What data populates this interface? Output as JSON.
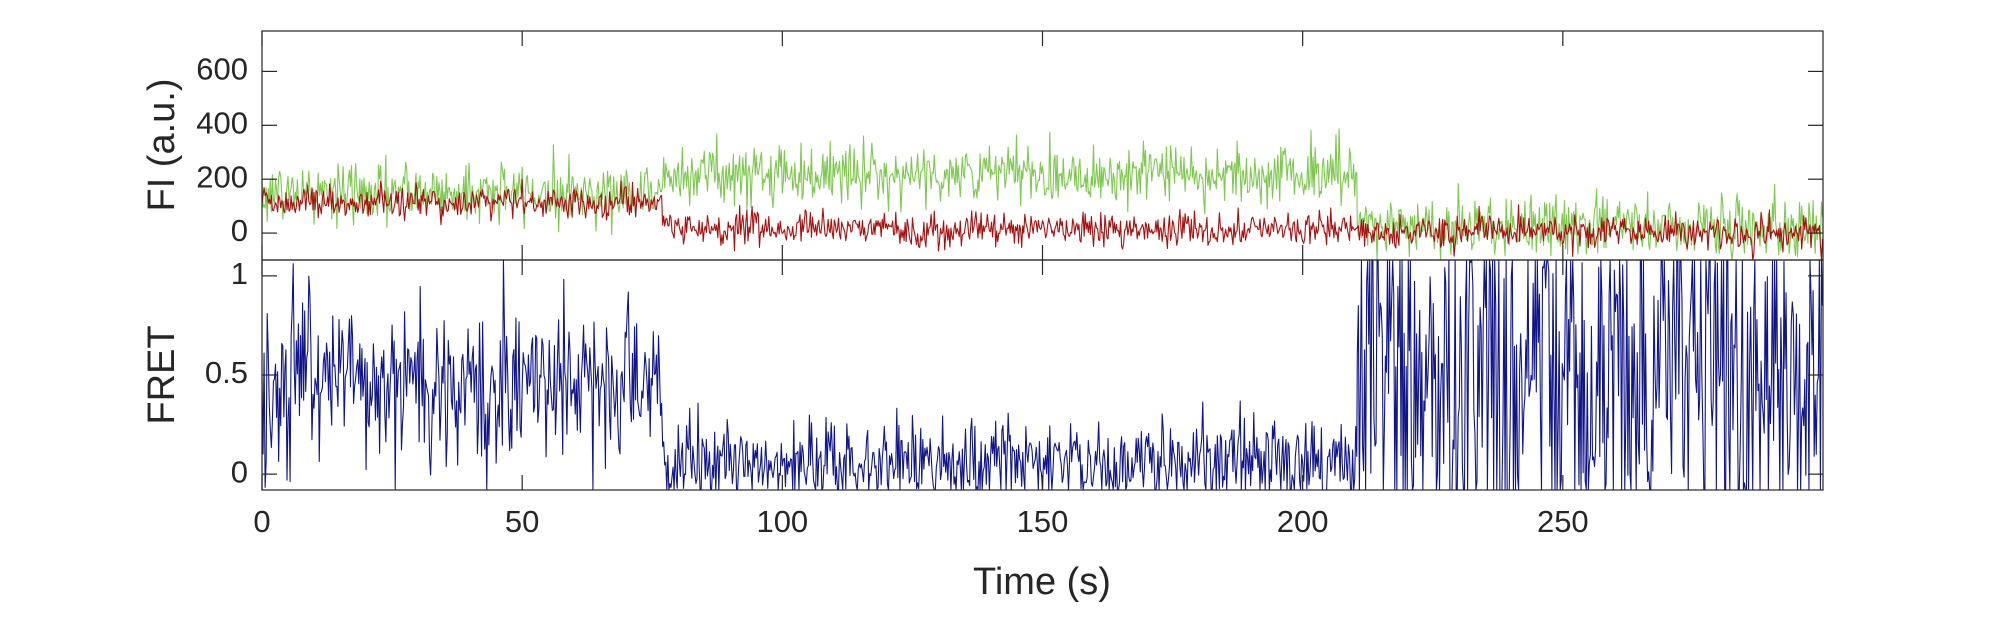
{
  "chart_data": [
    {
      "type": "line",
      "panel": "fluorescence",
      "xlabel": "",
      "ylabel": "FI (a.u.)",
      "xlim": [
        0,
        300
      ],
      "ylim": [
        -100,
        750
      ],
      "yticks": [
        0,
        200,
        400,
        600
      ],
      "ytick_labels": [
        "0",
        "200",
        "400",
        "600"
      ],
      "grid": false,
      "x_step": 0.2,
      "series": [
        {
          "color": "#7ec850",
          "noise_sd": 55,
          "segments": [
            {
              "x_start": 0,
              "x_end": 77,
              "mean": 150
            },
            {
              "x_start": 77,
              "x_end": 210.5,
              "mean": 220
            },
            {
              "x_start": 210.5,
              "x_end": 300,
              "mean": 25
            }
          ]
        },
        {
          "color": "#a81010",
          "noise_sd": 30,
          "segments": [
            {
              "x_start": 0,
              "x_end": 77,
              "mean": 115
            },
            {
              "x_start": 77,
              "x_end": 210.5,
              "mean": 15
            },
            {
              "x_start": 210.5,
              "x_end": 300,
              "mean": 5
            }
          ]
        }
      ]
    },
    {
      "type": "line",
      "panel": "fret",
      "xlabel": "Time (s)",
      "ylabel": "FRET",
      "xlim": [
        0,
        300
      ],
      "ylim": [
        -0.08,
        1.08
      ],
      "xticks": [
        0,
        50,
        100,
        150,
        200,
        250
      ],
      "xtick_labels": [
        "0",
        "50",
        "100",
        "150",
        "200",
        "250"
      ],
      "yticks": [
        0,
        0.5,
        1
      ],
      "ytick_labels": [
        "0",
        "0.5",
        "1"
      ],
      "grid": false,
      "x_step": 0.2,
      "series": [
        {
          "color": "#10168a",
          "segments": [
            {
              "x_start": 0,
              "x_end": 77,
              "mean": 0.45,
              "noise_sd": 0.2
            },
            {
              "x_start": 77,
              "x_end": 210.5,
              "mean": 0.05,
              "noise_sd": 0.12
            },
            {
              "x_start": 210.5,
              "x_end": 300,
              "mean": 0.5,
              "noise_sd": 0.6
            }
          ]
        }
      ]
    }
  ]
}
